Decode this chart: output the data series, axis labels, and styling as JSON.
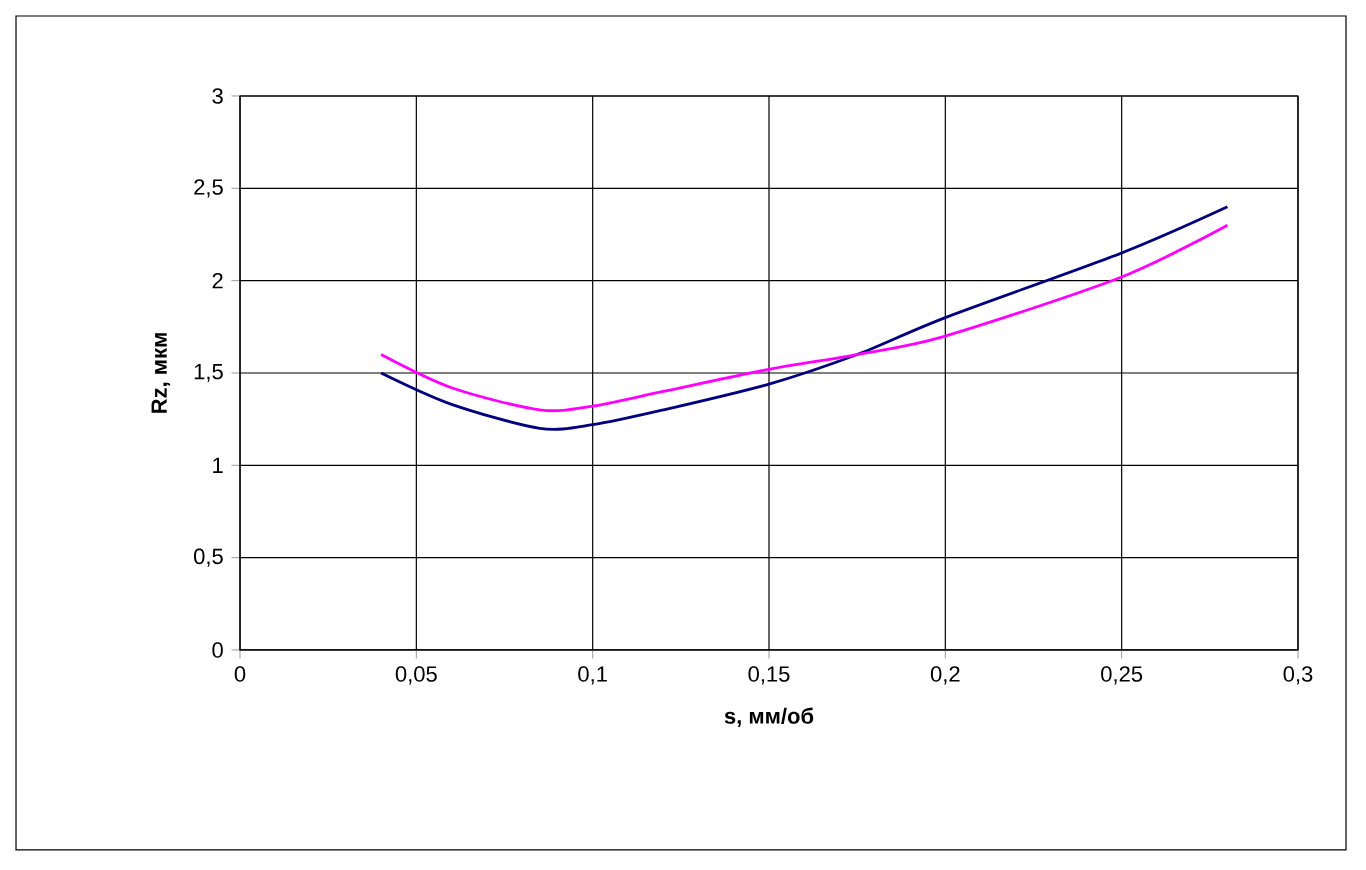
{
  "chart_data": {
    "type": "line",
    "xlabel": "s, мм/об",
    "ylabel": "Rz, мкм",
    "x": [
      0.04,
      0.06,
      0.085,
      0.1,
      0.12,
      0.15,
      0.175,
      0.2,
      0.25,
      0.28
    ],
    "series": [
      {
        "color": "#000080",
        "values": [
          1.5,
          1.33,
          1.2,
          1.22,
          1.3,
          1.44,
          1.6,
          1.8,
          2.15,
          2.4
        ]
      },
      {
        "color": "#ff00ff",
        "values": [
          1.6,
          1.42,
          1.3,
          1.32,
          1.4,
          1.52,
          1.6,
          1.7,
          2.02,
          2.3
        ]
      }
    ],
    "xlim": [
      0,
      0.3
    ],
    "ylim": [
      0,
      3
    ],
    "xticks": [
      0,
      {
        "value": 0.05,
        "label": "0,05"
      },
      {
        "value": 0.1,
        "label": "0,1"
      },
      {
        "value": 0.15,
        "label": "0,15"
      },
      {
        "value": 0.2,
        "label": "0,2"
      },
      {
        "value": 0.25,
        "label": "0,25"
      },
      {
        "value": 0.3,
        "label": "0,3"
      }
    ],
    "yticks": [
      0,
      {
        "value": 0.5,
        "label": "0,5"
      },
      1,
      {
        "value": 1.5,
        "label": "1,5"
      },
      2,
      {
        "value": 2.5,
        "label": "2,5"
      },
      3
    ],
    "grid": true,
    "marker": "none",
    "line_style": "solid"
  }
}
